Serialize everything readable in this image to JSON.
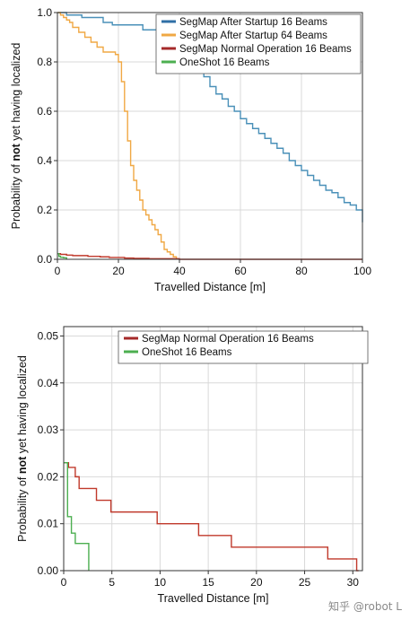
{
  "chart_data": [
    {
      "type": "line",
      "ylabel_parts": [
        "Probability of ",
        "not",
        " yet having localized"
      ],
      "xlabel": "Travelled Distance [m]",
      "xlim": [
        0,
        100
      ],
      "ylim": [
        0,
        1
      ],
      "xticks": [
        0,
        20,
        40,
        60,
        80,
        100
      ],
      "yticks": [
        0.0,
        0.2,
        0.4,
        0.6,
        0.8,
        1.0
      ],
      "ytick_labels": [
        "0.0",
        "0.2",
        "0.4",
        "0.6",
        "0.8",
        "1.0"
      ],
      "grid": true,
      "legend_position": "top-right",
      "series": [
        {
          "name": "SegMap After Startup 16 Beams",
          "color": "#4a90b8",
          "legend_color": "#2f6fa6",
          "x": [
            0,
            3,
            8,
            15,
            18,
            25,
            28,
            30,
            33,
            36,
            38,
            40,
            42,
            44,
            46,
            48,
            50,
            52,
            54,
            56,
            58,
            60,
            62,
            64,
            66,
            68,
            70,
            72,
            74,
            76,
            78,
            80,
            82,
            84,
            86,
            88,
            90,
            92,
            94,
            96,
            98,
            100
          ],
          "y": [
            1.0,
            0.99,
            0.98,
            0.96,
            0.95,
            0.95,
            0.93,
            0.93,
            0.91,
            0.9,
            0.88,
            0.86,
            0.84,
            0.82,
            0.78,
            0.74,
            0.7,
            0.67,
            0.65,
            0.62,
            0.6,
            0.57,
            0.55,
            0.53,
            0.51,
            0.49,
            0.47,
            0.45,
            0.43,
            0.4,
            0.38,
            0.36,
            0.34,
            0.32,
            0.3,
            0.28,
            0.27,
            0.25,
            0.23,
            0.22,
            0.2,
            0.15
          ]
        },
        {
          "name": "SegMap After Startup 64 Beams",
          "color": "#f0a844",
          "legend_color": "#f0a844",
          "x": [
            0,
            1,
            2,
            3,
            4,
            5,
            7,
            9,
            11,
            13,
            15,
            17,
            19,
            20,
            21,
            22,
            23,
            24,
            25,
            26,
            27,
            28,
            29,
            30,
            31,
            32,
            33,
            34,
            35,
            36,
            37,
            38,
            39
          ],
          "y": [
            1.0,
            0.99,
            0.98,
            0.97,
            0.96,
            0.94,
            0.92,
            0.9,
            0.88,
            0.86,
            0.84,
            0.84,
            0.83,
            0.8,
            0.72,
            0.6,
            0.48,
            0.38,
            0.32,
            0.28,
            0.24,
            0.2,
            0.18,
            0.16,
            0.14,
            0.12,
            0.1,
            0.07,
            0.04,
            0.03,
            0.02,
            0.01,
            0.0
          ]
        },
        {
          "name": "SegMap Normal Operation 16 Beams",
          "color": "#c0392b",
          "legend_color": "#a52a2a",
          "x": [
            0,
            1,
            3,
            5,
            10,
            14,
            17,
            22,
            25,
            30,
            40,
            100
          ],
          "y": [
            0.023,
            0.02,
            0.017,
            0.015,
            0.012,
            0.01,
            0.0075,
            0.005,
            0.004,
            0.0025,
            0.0,
            0.0
          ]
        },
        {
          "name": "OneShot 16 Beams",
          "color": "#4caf50",
          "legend_color": "#4caf50",
          "x": [
            0,
            0.5,
            1,
            2,
            3
          ],
          "y": [
            0.023,
            0.012,
            0.008,
            0.006,
            0.0
          ]
        }
      ]
    },
    {
      "type": "line",
      "ylabel_parts": [
        "Probability of ",
        "not",
        " yet having localized"
      ],
      "xlabel": "Travelled Distance [m]",
      "xlim": [
        0,
        31
      ],
      "ylim": [
        0,
        0.052
      ],
      "xticks": [
        0,
        5,
        10,
        15,
        20,
        25,
        30
      ],
      "yticks": [
        0.0,
        0.01,
        0.02,
        0.03,
        0.04,
        0.05
      ],
      "ytick_labels": [
        "0.00",
        "0.01",
        "0.02",
        "0.03",
        "0.04",
        "0.05"
      ],
      "grid": true,
      "legend_position": "top-right",
      "series": [
        {
          "name": "SegMap Normal Operation 16 Beams",
          "color": "#c0392b",
          "legend_color": "#a52a2a",
          "x": [
            0,
            0.5,
            1.2,
            1.6,
            3.4,
            4.9,
            9.7,
            14.0,
            17.4,
            27.4,
            30.4,
            30.6
          ],
          "y": [
            0.023,
            0.022,
            0.02,
            0.0175,
            0.015,
            0.0125,
            0.01,
            0.0075,
            0.005,
            0.0025,
            0.0,
            0.0
          ]
        },
        {
          "name": "OneShot 16 Beams",
          "color": "#4caf50",
          "legend_color": "#4caf50",
          "x": [
            0,
            0.4,
            0.8,
            1.2,
            2.6
          ],
          "y": [
            0.023,
            0.0115,
            0.008,
            0.0058,
            0.0
          ]
        }
      ]
    }
  ],
  "watermark": "知乎 @robot L"
}
